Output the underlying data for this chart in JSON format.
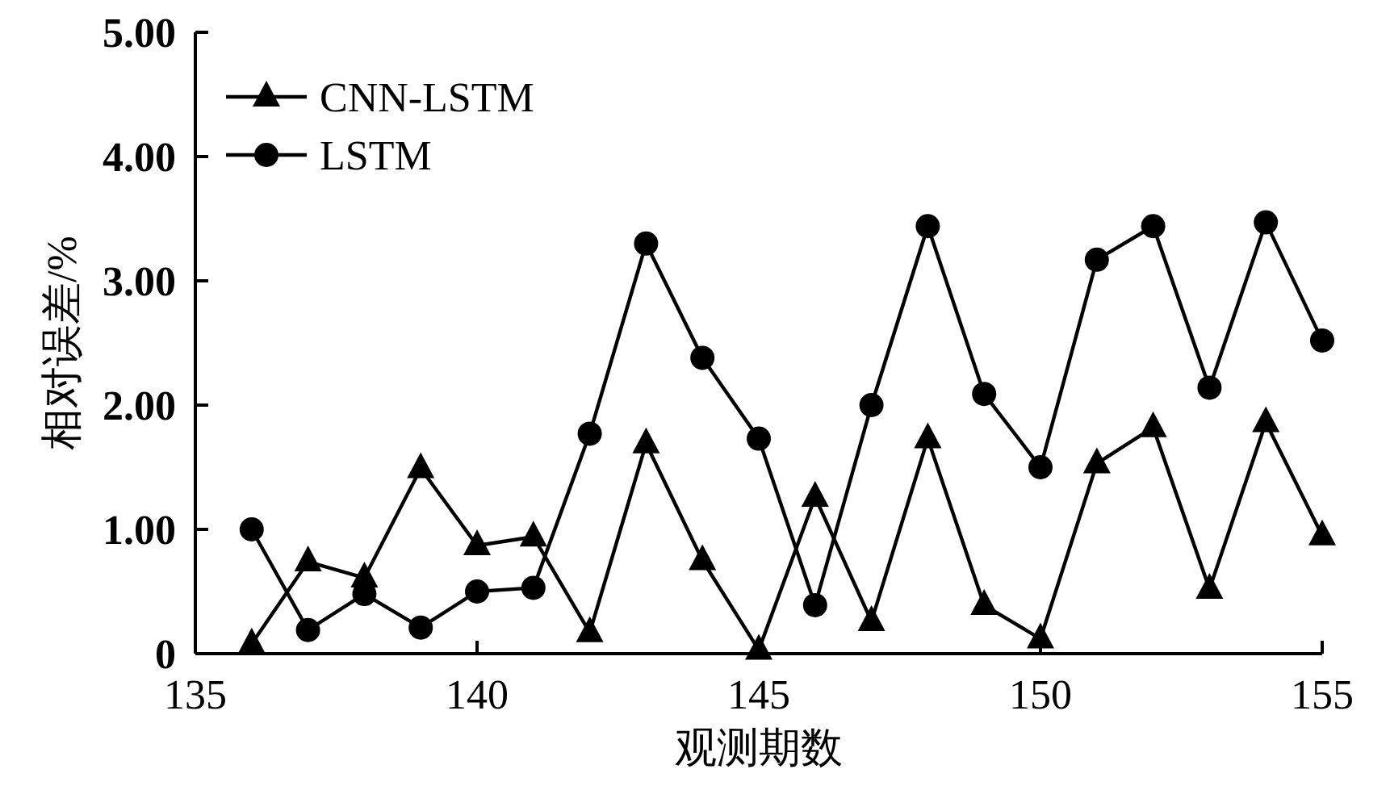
{
  "chart_data": {
    "type": "line",
    "xlabel": "观测期数",
    "ylabel": "相对误差/%",
    "x": [
      136,
      137,
      138,
      139,
      140,
      141,
      142,
      143,
      144,
      145,
      146,
      147,
      148,
      149,
      150,
      151,
      152,
      153,
      154,
      155
    ],
    "series": [
      {
        "name": "CNN-LSTM",
        "color": "#000000",
        "marker": "triangle",
        "values": [
          0.08,
          0.74,
          0.61,
          1.49,
          0.87,
          0.94,
          0.17,
          1.69,
          0.75,
          0.03,
          1.26,
          0.26,
          1.73,
          0.39,
          0.12,
          1.53,
          1.82,
          0.52,
          1.86,
          0.95
        ]
      },
      {
        "name": "LSTM",
        "color": "#000000",
        "marker": "circle",
        "values": [
          1.0,
          0.19,
          0.48,
          0.21,
          0.5,
          0.53,
          1.77,
          3.3,
          2.38,
          1.73,
          0.39,
          2.0,
          3.44,
          2.09,
          1.5,
          3.17,
          3.44,
          2.14,
          3.47,
          2.52
        ]
      }
    ],
    "xlim": [
      135,
      155
    ],
    "xticks": [
      135,
      140,
      145,
      150,
      155
    ],
    "ylim": [
      0,
      5
    ],
    "yticks": [
      {
        "value": 0,
        "label": "0"
      },
      {
        "value": 1,
        "label": "1.00"
      },
      {
        "value": 2,
        "label": "2.00"
      },
      {
        "value": 3,
        "label": "3.00"
      },
      {
        "value": 4,
        "label": "4.00"
      },
      {
        "value": 5,
        "label": "5.00"
      }
    ],
    "legend": "top left",
    "grid": false,
    "line_style": "solid"
  }
}
